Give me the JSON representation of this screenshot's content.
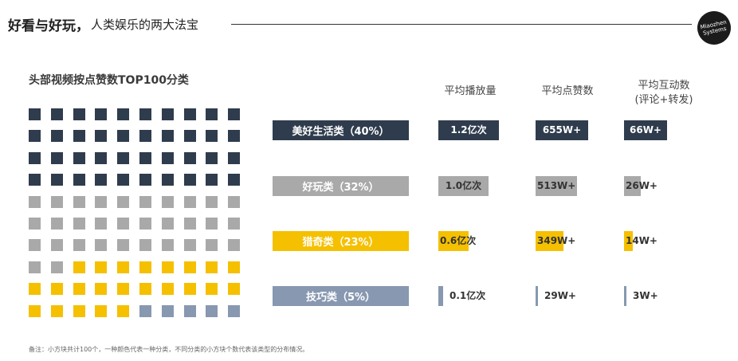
{
  "header": {
    "title_bold": "好看与好玩，",
    "title_rest": "人类娱乐的两大法宝",
    "logo_line1": "Miaozhen",
    "logo_line2": "Systems"
  },
  "section_title": "头部视频按点赞数TOP100分类",
  "colors": {
    "lifestyle": "#2f3c4d",
    "fun": "#a9a9a9",
    "curious": "#f5c000",
    "skill": "#8798b0"
  },
  "columns": {
    "plays": "平均播放量",
    "likes": "平均点赞数",
    "interact_line1": "平均互动数",
    "interact_line2": "(评论+转发)"
  },
  "footnote": "备注：小方块共计100个，一种颜色代表一种分类，不同分类的小方块个数代表该类型的分布情况。",
  "chart_data": {
    "type": "bar",
    "title": "头部视频按点赞数TOP100分类",
    "categories": [
      "美好生活类（40%）",
      "好玩类（32%）",
      "猎奇类（23%）",
      "技巧类（5%）"
    ],
    "category_keys": [
      "lifestyle",
      "fun",
      "curious",
      "skill"
    ],
    "waffle_counts": [
      40,
      32,
      23,
      5
    ],
    "series": [
      {
        "name": "平均播放量",
        "values": [
          1.2,
          1.0,
          0.6,
          0.1
        ],
        "labels": [
          "1.2亿次",
          "1.0亿次",
          "0.6亿次",
          "0.1亿次"
        ],
        "max": 1.2
      },
      {
        "name": "平均点赞数",
        "values": [
          655,
          513,
          349,
          29
        ],
        "labels": [
          "655W+",
          "513W+",
          "349W+",
          "29W+"
        ],
        "max": 655
      },
      {
        "name": "平均互动数(评论+转发)",
        "values": [
          66,
          26,
          14,
          3
        ],
        "labels": [
          "66W+",
          "26W+",
          "14W+",
          "3W+"
        ],
        "max": 66
      }
    ]
  }
}
